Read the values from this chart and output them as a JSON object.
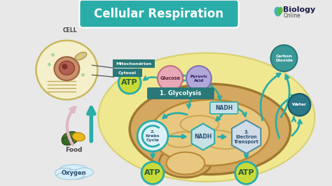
{
  "title": "Cellular Respiration",
  "bg_color": "#e8e8e8",
  "title_bg": "#2aada8",
  "title_text_color": "#ffffff",
  "cell_label": "CELL",
  "labels": {
    "mitochondrion": "Mitochondrion",
    "cytosol": "Cytosol",
    "glycolysis": "1. Glycolysis",
    "glucose": "Glucose",
    "pyruvic_acid": "Pyruvic\nAcid",
    "krebs": "2.\nKrebs\nCycle",
    "nadh_center": "NADH",
    "electron": "3.\nElectron\nTransport",
    "food": "Food",
    "oxygen": "Oxygen",
    "nadh_top": "NADH",
    "carbon_dioxide": "Carbon\nDioxide",
    "water": "Water"
  },
  "colors": {
    "teal": "#2aada8",
    "dark_teal": "#1a7a7a",
    "yellow_blob": "#f0e890",
    "yellow_blob_edge": "#d8d070",
    "cell_fill": "#f5f0cc",
    "cell_edge": "#c8b860",
    "nucleus_fill": "#c8906a",
    "nucleus_edge": "#a06040",
    "nuc_inner": "#b06050",
    "mito_tan_outer": "#d4a860",
    "mito_tan_inner": "#e8c880",
    "mito_inner_bg": "#f0dca0",
    "glucose_fill": "#e8a8b8",
    "glucose_edge": "#c07080",
    "pyruvic_fill": "#b0a8d8",
    "pyruvic_edge": "#8070b8",
    "nadh_fill": "#c8e0e8",
    "nadh_edge": "#2aada8",
    "hexagon_fill": "#d0dce8",
    "hexagon_edge": "#5090a8",
    "krebs_fill": "#ddf0f8",
    "krebs_edge": "#2aada8",
    "atp_fill": "#c8da38",
    "atp_edge": "#2aada8",
    "atp_text": "#2a5a30",
    "cloud_fill": "#d8eef8",
    "cloud_edge": "#a0c8e0",
    "carbon_fill": "#3a9898",
    "carbon_edge": "#2a7878",
    "water_fill": "#2a7888",
    "water_edge": "#1a5868",
    "label_box_bg": "#2a7878",
    "label_box_text": "#ffffff",
    "glyc_bg": "#2a7878",
    "arrow_color": "#2aada8",
    "pink_arrow": "#e0b8c8"
  }
}
